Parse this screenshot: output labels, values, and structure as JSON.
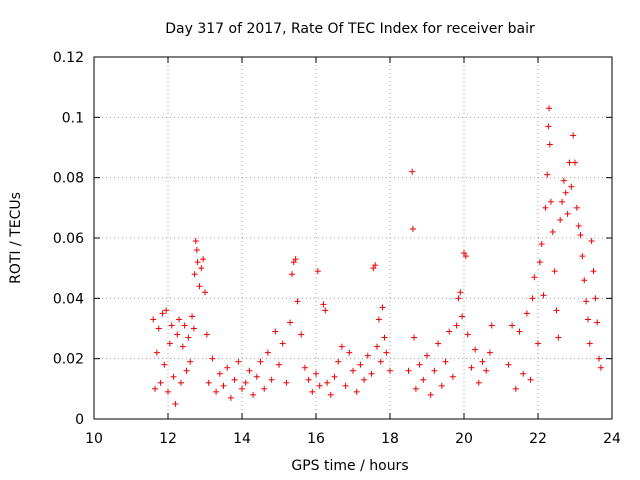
{
  "chart_data": {
    "type": "scatter",
    "title": "Day 317 of 2017, Rate Of TEC Index for receiver bair",
    "xlabel": "GPS time / hours",
    "ylabel": "ROTI / TECUs",
    "xlim": [
      10,
      24
    ],
    "ylim": [
      0,
      0.12
    ],
    "x_ticks": [
      "10",
      "12",
      "14",
      "16",
      "18",
      "20",
      "22",
      "24"
    ],
    "y_ticks": [
      "0",
      "0.02",
      "0.04",
      "0.06",
      "0.08",
      "0.1",
      "0.12"
    ],
    "grid": true,
    "marker": "plus",
    "color": "#ee0000",
    "series": [
      {
        "points": [
          [
            11.6,
            0.033
          ],
          [
            11.65,
            0.01
          ],
          [
            11.7,
            0.022
          ],
          [
            11.75,
            0.03
          ],
          [
            11.8,
            0.012
          ],
          [
            11.85,
            0.035
          ],
          [
            11.9,
            0.018
          ],
          [
            11.95,
            0.036
          ],
          [
            12.0,
            0.009
          ],
          [
            12.05,
            0.025
          ],
          [
            12.1,
            0.031
          ],
          [
            12.15,
            0.014
          ],
          [
            12.2,
            0.005
          ],
          [
            12.25,
            0.028
          ],
          [
            12.3,
            0.033
          ],
          [
            12.35,
            0.012
          ],
          [
            12.4,
            0.024
          ],
          [
            12.45,
            0.031
          ],
          [
            12.5,
            0.016
          ],
          [
            12.55,
            0.027
          ],
          [
            12.6,
            0.019
          ],
          [
            12.65,
            0.034
          ],
          [
            12.7,
            0.03
          ],
          [
            12.72,
            0.048
          ],
          [
            12.75,
            0.059
          ],
          [
            12.78,
            0.056
          ],
          [
            12.8,
            0.052
          ],
          [
            12.85,
            0.044
          ],
          [
            12.9,
            0.05
          ],
          [
            12.95,
            0.053
          ],
          [
            13.0,
            0.042
          ],
          [
            13.05,
            0.028
          ],
          [
            13.1,
            0.012
          ],
          [
            13.2,
            0.02
          ],
          [
            13.3,
            0.009
          ],
          [
            13.4,
            0.015
          ],
          [
            13.5,
            0.011
          ],
          [
            13.6,
            0.017
          ],
          [
            13.7,
            0.007
          ],
          [
            13.8,
            0.013
          ],
          [
            13.9,
            0.019
          ],
          [
            14.0,
            0.01
          ],
          [
            14.1,
            0.012
          ],
          [
            14.2,
            0.016
          ],
          [
            14.3,
            0.008
          ],
          [
            14.4,
            0.014
          ],
          [
            14.5,
            0.019
          ],
          [
            14.6,
            0.01
          ],
          [
            14.7,
            0.022
          ],
          [
            14.8,
            0.013
          ],
          [
            14.9,
            0.029
          ],
          [
            15.0,
            0.018
          ],
          [
            15.1,
            0.025
          ],
          [
            15.2,
            0.012
          ],
          [
            15.3,
            0.032
          ],
          [
            15.35,
            0.048
          ],
          [
            15.4,
            0.052
          ],
          [
            15.45,
            0.053
          ],
          [
            15.5,
            0.039
          ],
          [
            15.6,
            0.028
          ],
          [
            15.7,
            0.017
          ],
          [
            15.8,
            0.013
          ],
          [
            15.9,
            0.009
          ],
          [
            16.0,
            0.015
          ],
          [
            16.05,
            0.049
          ],
          [
            16.1,
            0.011
          ],
          [
            16.2,
            0.038
          ],
          [
            16.25,
            0.036
          ],
          [
            16.3,
            0.012
          ],
          [
            16.4,
            0.008
          ],
          [
            16.5,
            0.014
          ],
          [
            16.6,
            0.019
          ],
          [
            16.7,
            0.024
          ],
          [
            16.8,
            0.011
          ],
          [
            16.9,
            0.022
          ],
          [
            17.0,
            0.016
          ],
          [
            17.1,
            0.009
          ],
          [
            17.2,
            0.018
          ],
          [
            17.3,
            0.013
          ],
          [
            17.4,
            0.021
          ],
          [
            17.5,
            0.015
          ],
          [
            17.55,
            0.05
          ],
          [
            17.6,
            0.051
          ],
          [
            17.65,
            0.024
          ],
          [
            17.7,
            0.033
          ],
          [
            17.75,
            0.019
          ],
          [
            17.8,
            0.037
          ],
          [
            17.85,
            0.027
          ],
          [
            17.9,
            0.022
          ],
          [
            18.0,
            0.016
          ],
          [
            18.5,
            0.016
          ],
          [
            18.6,
            0.082
          ],
          [
            18.62,
            0.063
          ],
          [
            18.65,
            0.027
          ],
          [
            18.7,
            0.01
          ],
          [
            18.8,
            0.018
          ],
          [
            18.9,
            0.013
          ],
          [
            19.0,
            0.021
          ],
          [
            19.1,
            0.008
          ],
          [
            19.2,
            0.016
          ],
          [
            19.3,
            0.025
          ],
          [
            19.4,
            0.011
          ],
          [
            19.5,
            0.019
          ],
          [
            19.6,
            0.029
          ],
          [
            19.7,
            0.014
          ],
          [
            19.8,
            0.031
          ],
          [
            19.85,
            0.04
          ],
          [
            19.9,
            0.042
          ],
          [
            19.95,
            0.034
          ],
          [
            20.0,
            0.055
          ],
          [
            20.05,
            0.054
          ],
          [
            20.1,
            0.028
          ],
          [
            20.2,
            0.017
          ],
          [
            20.3,
            0.023
          ],
          [
            20.4,
            0.012
          ],
          [
            20.5,
            0.019
          ],
          [
            20.6,
            0.016
          ],
          [
            20.7,
            0.022
          ],
          [
            20.75,
            0.031
          ],
          [
            21.2,
            0.018
          ],
          [
            21.3,
            0.031
          ],
          [
            21.4,
            0.01
          ],
          [
            21.5,
            0.029
          ],
          [
            21.6,
            0.015
          ],
          [
            21.7,
            0.035
          ],
          [
            21.8,
            0.013
          ],
          [
            21.85,
            0.04
          ],
          [
            21.9,
            0.047
          ],
          [
            22.0,
            0.025
          ],
          [
            22.05,
            0.052
          ],
          [
            22.1,
            0.058
          ],
          [
            22.15,
            0.041
          ],
          [
            22.2,
            0.07
          ],
          [
            22.25,
            0.081
          ],
          [
            22.28,
            0.097
          ],
          [
            22.3,
            0.103
          ],
          [
            22.32,
            0.091
          ],
          [
            22.35,
            0.072
          ],
          [
            22.4,
            0.062
          ],
          [
            22.45,
            0.049
          ],
          [
            22.5,
            0.036
          ],
          [
            22.55,
            0.027
          ],
          [
            22.6,
            0.066
          ],
          [
            22.65,
            0.072
          ],
          [
            22.7,
            0.079
          ],
          [
            22.75,
            0.075
          ],
          [
            22.8,
            0.068
          ],
          [
            22.85,
            0.085
          ],
          [
            22.9,
            0.077
          ],
          [
            22.95,
            0.094
          ],
          [
            23.0,
            0.085
          ],
          [
            23.05,
            0.07
          ],
          [
            23.1,
            0.064
          ],
          [
            23.15,
            0.061
          ],
          [
            23.2,
            0.054
          ],
          [
            23.25,
            0.046
          ],
          [
            23.3,
            0.039
          ],
          [
            23.35,
            0.033
          ],
          [
            23.4,
            0.025
          ],
          [
            23.45,
            0.059
          ],
          [
            23.5,
            0.049
          ],
          [
            23.55,
            0.04
          ],
          [
            23.6,
            0.032
          ],
          [
            23.65,
            0.02
          ],
          [
            23.7,
            0.017
          ]
        ]
      }
    ]
  }
}
